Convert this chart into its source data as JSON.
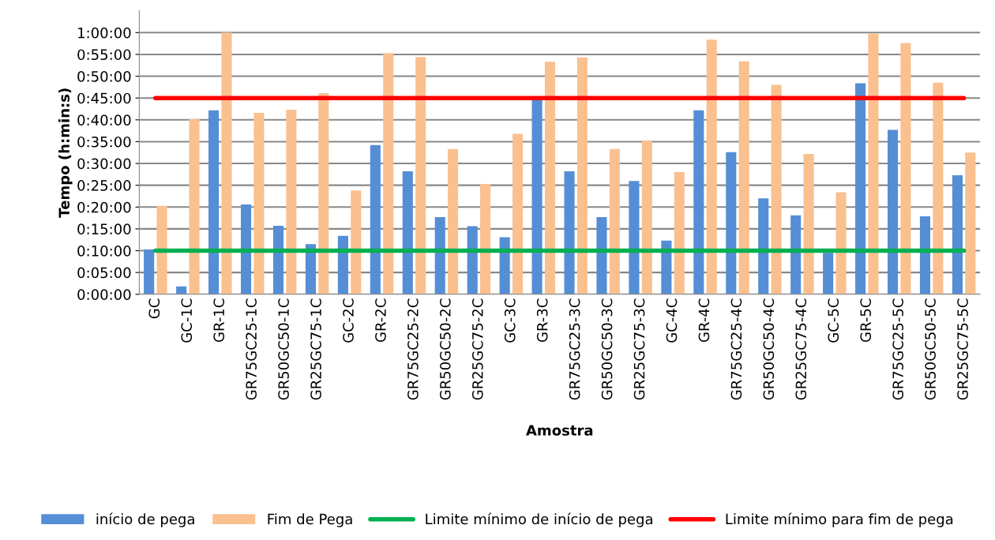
{
  "chart_data": {
    "type": "bar",
    "xlabel": "Amostra",
    "ylabel": "Tempo (h:min:s)",
    "categories": [
      "GC",
      "GC-1C",
      "GR-1C",
      "GR75GC25-1C",
      "GR50GC50-1C",
      "GR25GC75-1C",
      "GC-2C",
      "GR-2C",
      "GR75GC25-2C",
      "GR50GC50-2C",
      "GR25GC75-2C",
      "GC-3C",
      "GR-3C",
      "GR75GC25-3C",
      "GR50GC50-3C",
      "GR25GC75-3C",
      "GC-4C",
      "GR-4C",
      "GR75GC25-4C",
      "GR50GC50-4C",
      "GR25GC75-4C",
      "GC-5C",
      "GR-5C",
      "GR75GC25-5C",
      "GR50GC50-5C",
      "GR25GC75-5C"
    ],
    "series": [
      {
        "name": "início de pega",
        "color": "#558ed5",
        "values": [
          10.3,
          1.8,
          42.2,
          20.6,
          15.7,
          11.5,
          13.4,
          34.2,
          28.2,
          17.7,
          15.6,
          13.1,
          44.6,
          28.2,
          17.7,
          26.0,
          12.3,
          42.2,
          32.6,
          22.0,
          18.1,
          9.5,
          48.4,
          37.7,
          17.9,
          27.3
        ]
      },
      {
        "name": "Fim de Pega",
        "color": "#fac090",
        "values": [
          20.3,
          40.2,
          60.0,
          41.6,
          42.3,
          46.1,
          23.8,
          55.3,
          54.4,
          33.3,
          25.3,
          36.8,
          53.3,
          54.3,
          33.3,
          35.2,
          28.0,
          58.4,
          53.4,
          48.0,
          32.2,
          23.4,
          59.8,
          57.6,
          48.5,
          32.5
        ]
      },
      {
        "name": "Limite mínimo de início de pega",
        "type": "line",
        "color": "#00b050",
        "values": [
          10,
          10,
          10,
          10,
          10,
          10,
          10,
          10,
          10,
          10,
          10,
          10,
          10,
          10,
          10,
          10,
          10,
          10,
          10,
          10,
          10,
          10,
          10,
          10,
          10,
          10
        ]
      },
      {
        "name": "Limite mínimo para fim de pega",
        "type": "line",
        "color": "#ff0000",
        "values": [
          45,
          45,
          45,
          45,
          45,
          45,
          45,
          45,
          45,
          45,
          45,
          45,
          45,
          45,
          45,
          45,
          45,
          45,
          45,
          45,
          45,
          45,
          45,
          45,
          45,
          45
        ]
      }
    ],
    "ylim": [
      0,
      65
    ],
    "yticks": [
      {
        "value": 0,
        "label": "0:00:00"
      },
      {
        "value": 5,
        "label": "0:05:00"
      },
      {
        "value": 10,
        "label": "0:10:00"
      },
      {
        "value": 15,
        "label": "0:15:00"
      },
      {
        "value": 20,
        "label": "0:20:00"
      },
      {
        "value": 25,
        "label": "0:25:00"
      },
      {
        "value": 30,
        "label": "0:30:00"
      },
      {
        "value": 35,
        "label": "0:35:00"
      },
      {
        "value": 40,
        "label": "0:40:00"
      },
      {
        "value": 45,
        "label": "0:45:00"
      },
      {
        "value": 50,
        "label": "0:50:00"
      },
      {
        "value": 55,
        "label": "0:55:00"
      },
      {
        "value": 60,
        "label": "1:00:00"
      }
    ],
    "grid": "y",
    "legend": "bottom",
    "marker": "none",
    "line_style": "solid"
  }
}
